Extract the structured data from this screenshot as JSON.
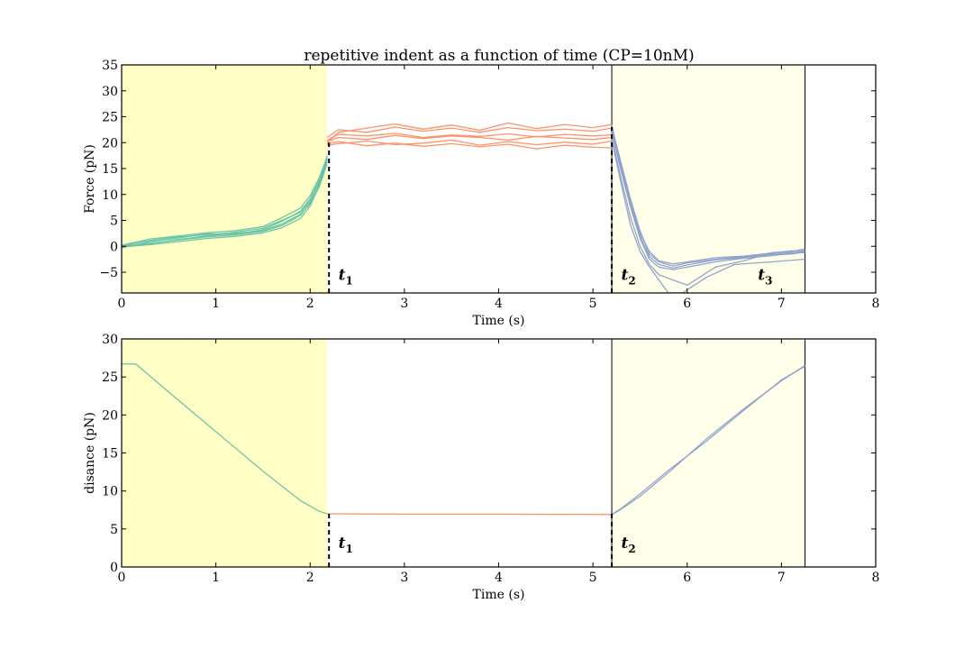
{
  "figure": {
    "title": "repetitive indent as a function of time (CP=10nM)"
  },
  "colors": {
    "approach": "#66c2a5",
    "hold": "#fc8d62",
    "retract": "#8da0cb",
    "shade_approach": "#ffffc6",
    "shade_retract": "#ffffea"
  },
  "chart_data": [
    {
      "type": "line",
      "name": "force",
      "title": "repetitive indent as a function of time (CP=10nM)",
      "xlabel": "Time (s)",
      "ylabel": "Force (pN)",
      "xlim": [
        0,
        8
      ],
      "ylim": [
        -9,
        35
      ],
      "xticks": [
        0,
        1,
        2,
        3,
        4,
        5,
        6,
        7,
        8
      ],
      "yticks": [
        -5,
        0,
        5,
        10,
        15,
        20,
        25,
        30,
        35
      ],
      "grid": false,
      "legend": "none",
      "shaded_regions": [
        {
          "x0": 0,
          "x1": 2.18,
          "color": "shade_approach"
        },
        {
          "x0": 5.2,
          "x1": 7.25,
          "color": "shade_retract"
        }
      ],
      "vlines": [
        {
          "x": 5.2,
          "style": "solid"
        },
        {
          "x": 7.25,
          "style": "solid"
        }
      ],
      "markers": [
        {
          "x": 2.2,
          "dashed_from": -9,
          "dashed_to": 20,
          "label": "t",
          "sub": "1",
          "label_x": 2.3,
          "label_y": -6.5
        },
        {
          "x": 5.2,
          "dashed_from": -9,
          "dashed_to": 23,
          "label": "t",
          "sub": "2",
          "label_x": 5.3,
          "label_y": -6.5
        },
        {
          "x": null,
          "label": "t",
          "sub": "3",
          "label_x": 6.75,
          "label_y": -6.5
        }
      ],
      "series": [
        {
          "segment": "approach",
          "color": "approach",
          "x": [
            0,
            0.3,
            0.6,
            0.9,
            1.2,
            1.5,
            1.7,
            1.9,
            2.0,
            2.1,
            2.18
          ],
          "values": [
            0.0,
            0.6,
            1.2,
            1.8,
            2.2,
            2.9,
            4.0,
            6.0,
            8.5,
            12.5,
            17.5
          ]
        },
        {
          "segment": "approach",
          "color": "approach",
          "x": [
            0,
            0.3,
            0.6,
            0.9,
            1.2,
            1.5,
            1.7,
            1.9,
            2.0,
            2.1,
            2.18
          ],
          "values": [
            -0.3,
            0.9,
            1.6,
            2.4,
            2.3,
            3.2,
            4.8,
            6.8,
            9.2,
            12.8,
            16.8
          ]
        },
        {
          "segment": "approach",
          "color": "approach",
          "x": [
            0,
            0.3,
            0.6,
            0.9,
            1.2,
            1.5,
            1.7,
            1.9,
            2.0,
            2.1,
            2.18
          ],
          "values": [
            0.2,
            1.4,
            2.0,
            2.6,
            3.0,
            3.8,
            5.5,
            7.4,
            9.8,
            13.4,
            17.2
          ]
        },
        {
          "segment": "approach",
          "color": "approach",
          "x": [
            0,
            0.3,
            0.6,
            0.9,
            1.2,
            1.5,
            1.7,
            1.9,
            2.0,
            2.1,
            2.18
          ],
          "values": [
            -0.1,
            0.3,
            0.9,
            1.5,
            1.9,
            2.6,
            3.6,
            5.4,
            7.8,
            11.8,
            16.4
          ]
        },
        {
          "segment": "approach",
          "color": "approach",
          "x": [
            0,
            0.3,
            0.6,
            0.9,
            1.2,
            1.5,
            1.7,
            1.9,
            2.0,
            2.1,
            2.18
          ],
          "values": [
            0.1,
            1.1,
            1.8,
            2.2,
            2.7,
            3.5,
            5.0,
            6.6,
            8.8,
            12.2,
            17.0
          ]
        },
        {
          "segment": "approach",
          "color": "approach",
          "x": [
            0,
            0.3,
            0.6,
            0.9,
            1.2,
            1.5,
            1.7,
            1.9,
            2.0,
            2.1,
            2.18
          ],
          "values": [
            0.0,
            0.5,
            1.3,
            2.0,
            2.5,
            3.0,
            4.3,
            6.2,
            8.2,
            11.6,
            16.0
          ]
        },
        {
          "segment": "hold",
          "color": "hold",
          "x": [
            2.18,
            2.3,
            2.6,
            2.9,
            3.2,
            3.5,
            3.8,
            4.1,
            4.4,
            4.7,
            5.0,
            5.2
          ],
          "values": [
            20.0,
            22.0,
            22.8,
            23.6,
            22.6,
            23.4,
            22.4,
            23.8,
            22.7,
            23.5,
            22.9,
            23.5
          ]
        },
        {
          "segment": "hold",
          "color": "hold",
          "x": [
            2.18,
            2.3,
            2.6,
            2.9,
            3.2,
            3.5,
            3.8,
            4.1,
            4.4,
            4.7,
            5.0,
            5.2
          ],
          "values": [
            20.5,
            21.6,
            21.3,
            21.8,
            21.0,
            21.5,
            21.2,
            21.7,
            21.1,
            21.6,
            21.3,
            21.5
          ]
        },
        {
          "segment": "hold",
          "color": "hold",
          "x": [
            2.18,
            2.3,
            2.6,
            2.9,
            3.2,
            3.5,
            3.8,
            4.1,
            4.4,
            4.7,
            5.0,
            5.2
          ],
          "values": [
            19.5,
            19.8,
            20.3,
            19.6,
            19.9,
            20.5,
            19.5,
            20.2,
            19.6,
            20.1,
            19.7,
            20.3
          ]
        },
        {
          "segment": "hold",
          "color": "hold",
          "x": [
            2.18,
            2.3,
            2.6,
            2.9,
            3.2,
            3.5,
            3.8,
            4.1,
            4.4,
            4.7,
            5.0,
            5.2
          ],
          "values": [
            20.2,
            21.0,
            20.6,
            21.4,
            20.8,
            21.3,
            21.0,
            20.5,
            21.2,
            20.9,
            20.6,
            21.0
          ]
        },
        {
          "segment": "hold",
          "color": "hold",
          "x": [
            2.18,
            2.3,
            2.6,
            2.9,
            3.2,
            3.5,
            3.8,
            4.1,
            4.4,
            4.7,
            5.0,
            5.2
          ],
          "values": [
            21.0,
            22.5,
            22.0,
            23.0,
            22.2,
            22.8,
            22.0,
            22.9,
            22.3,
            22.6,
            22.2,
            22.8
          ]
        },
        {
          "segment": "hold",
          "color": "hold",
          "x": [
            2.18,
            2.3,
            2.6,
            2.9,
            3.2,
            3.5,
            3.8,
            4.1,
            4.4,
            4.7,
            5.0,
            5.2
          ],
          "values": [
            19.8,
            20.2,
            19.4,
            19.9,
            19.3,
            19.8,
            19.2,
            19.7,
            18.8,
            19.5,
            19.1,
            19.0
          ]
        },
        {
          "segment": "retract",
          "color": "retract",
          "x": [
            5.2,
            5.3,
            5.4,
            5.5,
            5.6,
            5.7,
            5.85,
            6.0,
            6.3,
            6.6,
            6.9,
            7.1,
            7.25
          ],
          "values": [
            23.0,
            16.0,
            9.0,
            3.0,
            -1.5,
            -3.0,
            -3.8,
            -3.2,
            -2.5,
            -2.0,
            -1.5,
            -1.2,
            -1.0
          ]
        },
        {
          "segment": "retract",
          "color": "retract",
          "x": [
            5.2,
            5.3,
            5.4,
            5.5,
            5.6,
            5.7,
            5.85,
            6.0,
            6.3,
            6.6,
            6.9,
            7.1,
            7.25
          ],
          "values": [
            22.0,
            14.5,
            7.5,
            1.5,
            -2.5,
            -4.0,
            -4.5,
            -4.0,
            -3.0,
            -2.3,
            -1.8,
            -1.4,
            -1.2
          ]
        },
        {
          "segment": "retract",
          "color": "retract",
          "x": [
            5.2,
            5.3,
            5.4,
            5.5,
            5.6,
            5.7,
            5.85,
            6.0,
            6.3,
            6.6,
            6.9,
            7.1,
            7.25
          ],
          "values": [
            21.0,
            13.0,
            5.5,
            0.0,
            -3.5,
            -5.5,
            -6.5,
            -7.5,
            -4.0,
            -2.8,
            -1.2,
            -1.0,
            -0.5
          ]
        },
        {
          "segment": "retract",
          "color": "retract",
          "x": [
            5.2,
            5.3,
            5.4,
            5.5,
            5.6,
            5.7,
            5.85,
            6.0,
            6.3,
            6.6,
            6.9,
            7.1,
            7.25
          ],
          "values": [
            23.5,
            15.0,
            8.0,
            2.0,
            -2.0,
            -3.5,
            -4.2,
            -3.6,
            -2.6,
            -2.2,
            -1.6,
            -1.5,
            -1.1
          ]
        },
        {
          "segment": "retract",
          "color": "retract",
          "x": [
            5.2,
            5.3,
            5.4,
            5.5,
            5.6,
            5.7,
            5.8,
            5.95,
            6.2,
            6.5,
            6.9,
            7.25
          ],
          "values": [
            20.5,
            12.0,
            4.0,
            -1.0,
            -4.0,
            -6.5,
            -9.0,
            -9.0,
            -6.0,
            -3.5,
            -3.0,
            -2.5
          ]
        },
        {
          "segment": "retract",
          "color": "retract",
          "x": [
            5.2,
            5.3,
            5.4,
            5.5,
            5.6,
            5.7,
            5.85,
            6.0,
            6.3,
            6.6,
            6.9,
            7.1,
            7.25
          ],
          "values": [
            22.5,
            15.5,
            8.5,
            2.5,
            -1.0,
            -2.8,
            -3.4,
            -3.0,
            -2.2,
            -1.9,
            -1.3,
            -0.9,
            -0.8
          ]
        }
      ]
    },
    {
      "type": "line",
      "name": "distance",
      "xlabel": "Time (s)",
      "ylabel": "disance (pN)",
      "xlim": [
        0,
        8
      ],
      "ylim": [
        0,
        30
      ],
      "xticks": [
        0,
        1,
        2,
        3,
        4,
        5,
        6,
        7,
        8
      ],
      "yticks": [
        0,
        5,
        10,
        15,
        20,
        25,
        30
      ],
      "grid": false,
      "legend": "none",
      "shaded_regions": [
        {
          "x0": 0,
          "x1": 2.18,
          "color": "shade_approach"
        },
        {
          "x0": 5.2,
          "x1": 7.25,
          "color": "shade_retract"
        }
      ],
      "vlines": [
        {
          "x": 5.2,
          "style": "solid"
        },
        {
          "x": 7.25,
          "style": "solid"
        }
      ],
      "markers": [
        {
          "x": 2.2,
          "dashed_from": 0,
          "dashed_to": 7,
          "label": "t",
          "sub": "1",
          "label_x": 2.3,
          "label_y": 2.5
        },
        {
          "x": 5.2,
          "dashed_from": 0,
          "dashed_to": 7,
          "label": "t",
          "sub": "2",
          "label_x": 5.3,
          "label_y": 2.5
        }
      ],
      "series": [
        {
          "segment": "approach",
          "color": "approach",
          "x": [
            0,
            0.15,
            0.5,
            1.0,
            1.5,
            1.9,
            2.1,
            2.18
          ],
          "values": [
            26.7,
            26.7,
            23.0,
            17.8,
            12.6,
            8.7,
            7.3,
            7.0
          ]
        },
        {
          "segment": "hold",
          "color": "hold",
          "x": [
            2.18,
            3.0,
            4.0,
            5.2
          ],
          "values": [
            7.0,
            6.95,
            6.95,
            6.9
          ]
        },
        {
          "segment": "retract",
          "color": "retract",
          "x": [
            5.2,
            5.3,
            5.5,
            5.8,
            6.2,
            6.6,
            7.0,
            7.25
          ],
          "values": [
            6.9,
            7.6,
            9.3,
            12.4,
            16.8,
            20.8,
            24.5,
            26.5
          ]
        },
        {
          "segment": "retract",
          "color": "retract",
          "x": [
            5.2,
            5.3,
            5.5,
            5.8,
            6.2,
            6.6,
            7.0,
            7.25
          ],
          "values": [
            6.9,
            7.7,
            9.6,
            12.7,
            16.5,
            20.6,
            24.6,
            26.4
          ]
        }
      ]
    }
  ]
}
